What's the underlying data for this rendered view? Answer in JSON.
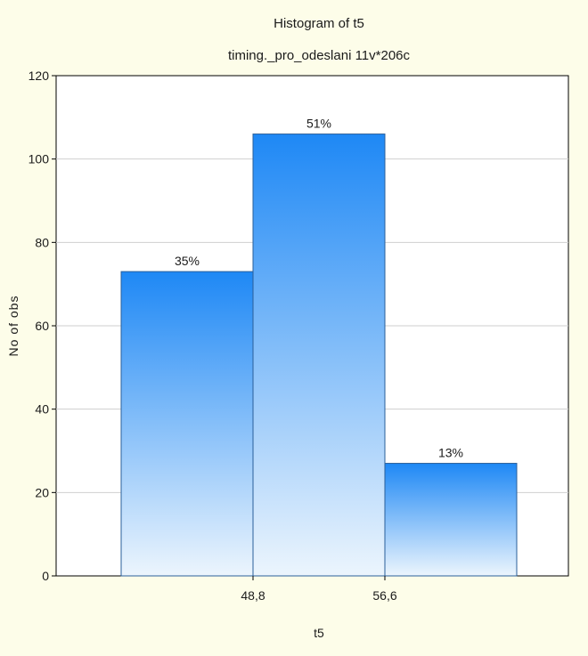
{
  "chart_data": {
    "type": "bar",
    "title": "Histogram of t5",
    "subtitle": "timing._pro_odeslani 11v*206c",
    "xlabel": "t5",
    "ylabel": "No of obs",
    "ylim": [
      0,
      120
    ],
    "yticks": [
      0,
      20,
      40,
      60,
      80,
      100,
      120
    ],
    "x_tick_labels": [
      "48,8",
      "56,6"
    ],
    "bars": [
      {
        "value": 73,
        "label": "35%"
      },
      {
        "value": 106,
        "label": "51%"
      },
      {
        "value": 27,
        "label": "13%"
      }
    ],
    "grid": true,
    "colors": {
      "bar_top": "#1e88f5",
      "bar_bottom": "#ecf5fd",
      "bar_edge": "#2a5f9a",
      "background": "#fdfde9",
      "plot_background": "#ffffff"
    }
  }
}
